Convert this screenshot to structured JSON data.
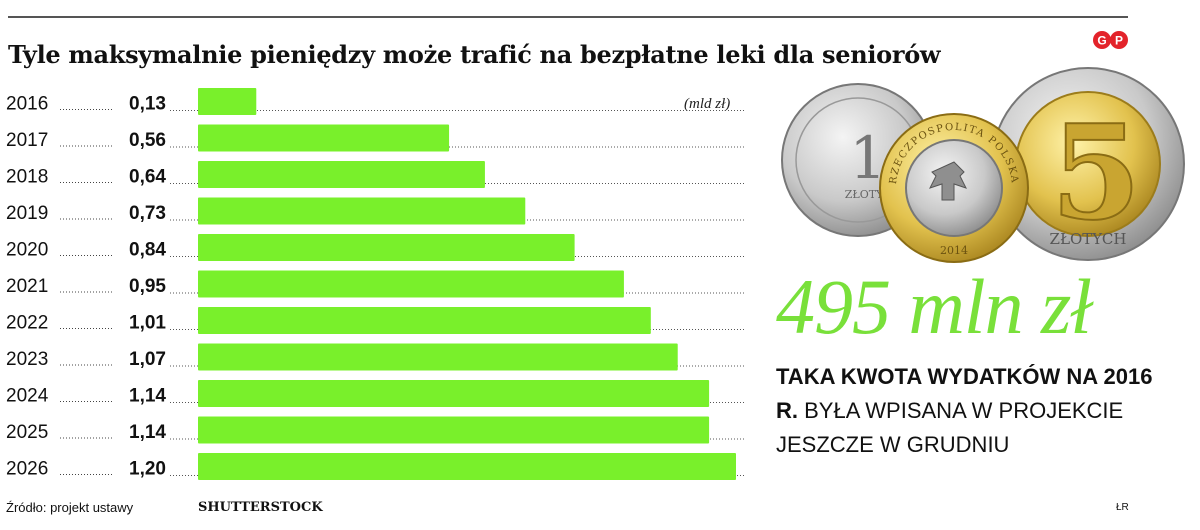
{
  "title": "Tyle maksymalnie pieniędzy może trafić na bezpłatne leki dla seniorów",
  "brand": "GP",
  "unit_label": "(mld zł)",
  "chart_data": {
    "type": "bar",
    "orientation": "horizontal",
    "categories": [
      "2016",
      "2017",
      "2018",
      "2019",
      "2020",
      "2021",
      "2022",
      "2023",
      "2024",
      "2025",
      "2026"
    ],
    "values": [
      0.13,
      0.56,
      0.64,
      0.73,
      0.84,
      0.95,
      1.01,
      1.07,
      1.14,
      1.14,
      1.2
    ],
    "value_labels": [
      "0,13",
      "0,56",
      "0,64",
      "0,73",
      "0,84",
      "0,95",
      "1,01",
      "1,07",
      "1,14",
      "1,14",
      "1,20"
    ],
    "xlim": [
      0,
      1.2
    ],
    "bar_color": "#79f02b",
    "grid": false
  },
  "highlight": {
    "amount": "495 mln zł",
    "text_bold": "Taka kwota wydatków na 2016 r.",
    "text_rest": "była wpisana w projekcie jeszcze w grudniu"
  },
  "coins": {
    "small_coin_value": "1",
    "small_coin_unit": "ZŁOTY",
    "center_coin_text": "RZECZPOSPOLITA POLSKA",
    "center_coin_year": "2014",
    "large_coin_value": "5",
    "large_coin_unit": "ZŁOTYCH"
  },
  "footer": {
    "source": "Źródło: projekt ustawy",
    "photo_credit": "SHUTTERSTOCK",
    "initials": "ŁR"
  },
  "colors": {
    "accent_green": "#79e03a",
    "brand_red": "#e3232a"
  }
}
